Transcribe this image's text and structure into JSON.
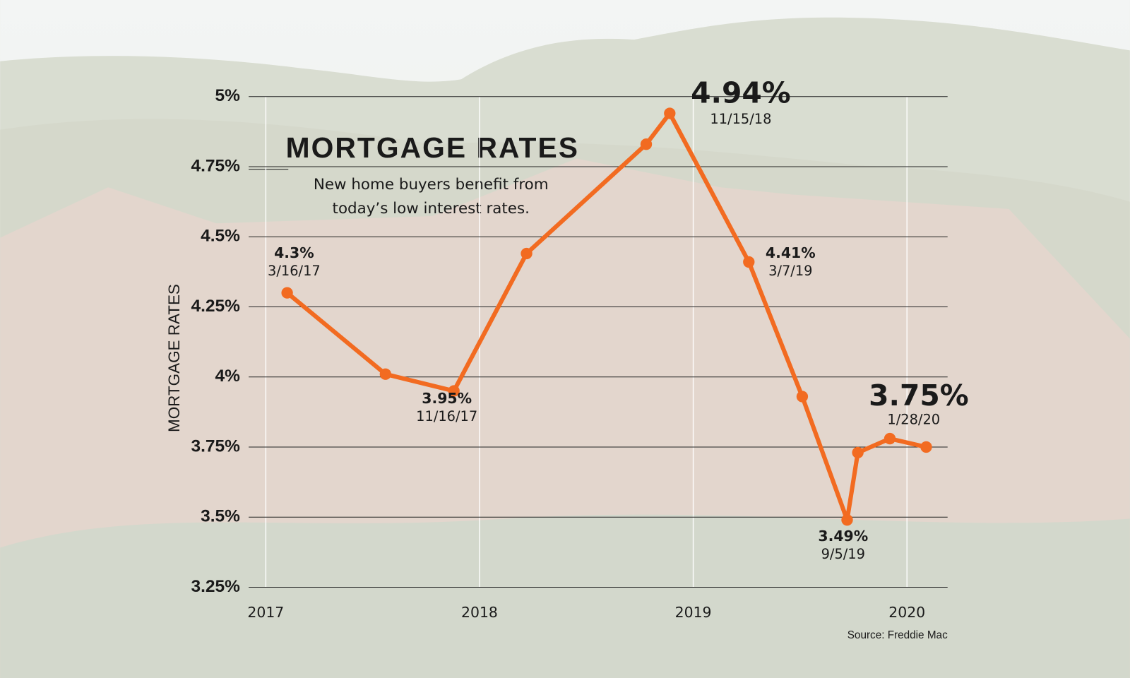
{
  "chart_data": {
    "type": "line",
    "title": "MORTGAGE RATES",
    "subtitle": [
      "New home buyers benefit from",
      "today’s low interest rates."
    ],
    "y_label": "MORTGAGE RATES",
    "source": "Source: Freddie Mac",
    "x": [
      2017.1,
      2017.56,
      2017.88,
      2018.22,
      2018.78,
      2018.89,
      2019.26,
      2019.51,
      2019.72,
      2019.77,
      2019.92,
      2020.09
    ],
    "series": [
      {
        "name": "Mortgage rate",
        "color": "#f26b21",
        "values": [
          4.3,
          4.01,
          3.95,
          4.44,
          4.83,
          4.94,
          4.41,
          3.93,
          3.49,
          3.73,
          3.78,
          3.75
        ]
      }
    ],
    "xlim": [
      2016.92,
      2020.19
    ],
    "xticks": [
      2017,
      2018,
      2019,
      2020
    ],
    "ylim": [
      3.25,
      5
    ],
    "yticks": [
      {
        "value": 3.25,
        "label": "3.25%"
      },
      {
        "value": 3.5,
        "label": "3.5%"
      },
      {
        "value": 3.75,
        "label": "3.75%"
      },
      {
        "value": 4,
        "label": "4%"
      },
      {
        "value": 4.25,
        "label": "4.25%"
      },
      {
        "value": 4.5,
        "label": "4.5%"
      },
      {
        "value": 4.75,
        "label": "4.75%"
      },
      {
        "value": 5,
        "label": "5%"
      }
    ],
    "grid": true,
    "annotations": [
      {
        "value": "4.3%",
        "date": "3/16/17"
      },
      {
        "value": "3.95%",
        "date": "11/16/17"
      },
      {
        "value": "4.94%",
        "date": "11/15/18"
      },
      {
        "value": "4.41%",
        "date": "3/7/19"
      },
      {
        "value": "3.49%",
        "date": "9/5/19"
      },
      {
        "value": "3.75%",
        "date": "1/28/20"
      }
    ]
  }
}
